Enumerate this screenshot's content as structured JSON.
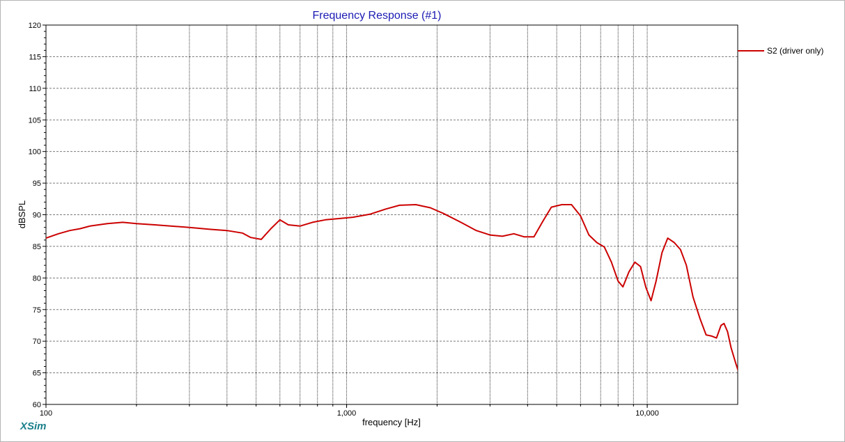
{
  "chart_data": {
    "type": "line",
    "title": "Frequency Response (#1)",
    "xlabel": "frequency [Hz]",
    "ylabel": "dBSPL",
    "xscale": "log",
    "xlim": [
      100,
      20000
    ],
    "ylim": [
      60,
      120
    ],
    "x_tick_labels": [
      {
        "value": 100,
        "label": "100"
      },
      {
        "value": 1000,
        "label": "1,000"
      },
      {
        "value": 10000,
        "label": "10,000"
      }
    ],
    "y_ticks": [
      60,
      65,
      70,
      75,
      80,
      85,
      90,
      95,
      100,
      105,
      110,
      115,
      120
    ],
    "grid": true,
    "legend_position": "right",
    "series": [
      {
        "name": "S2 (driver only)",
        "color": "#cc0000",
        "points": [
          [
            100,
            86.3
          ],
          [
            110,
            87.0
          ],
          [
            120,
            87.5
          ],
          [
            130,
            87.8
          ],
          [
            140,
            88.2
          ],
          [
            160,
            88.6
          ],
          [
            180,
            88.8
          ],
          [
            200,
            88.6
          ],
          [
            230,
            88.4
          ],
          [
            260,
            88.2
          ],
          [
            300,
            88.0
          ],
          [
            350,
            87.7
          ],
          [
            400,
            87.5
          ],
          [
            450,
            87.1
          ],
          [
            480,
            86.4
          ],
          [
            520,
            86.1
          ],
          [
            560,
            87.8
          ],
          [
            600,
            89.2
          ],
          [
            640,
            88.4
          ],
          [
            700,
            88.2
          ],
          [
            770,
            88.8
          ],
          [
            850,
            89.2
          ],
          [
            950,
            89.4
          ],
          [
            1050,
            89.6
          ],
          [
            1200,
            90.1
          ],
          [
            1350,
            90.9
          ],
          [
            1500,
            91.5
          ],
          [
            1700,
            91.6
          ],
          [
            1900,
            91.1
          ],
          [
            2100,
            90.2
          ],
          [
            2400,
            88.8
          ],
          [
            2700,
            87.5
          ],
          [
            3000,
            86.8
          ],
          [
            3300,
            86.6
          ],
          [
            3600,
            87.0
          ],
          [
            3900,
            86.5
          ],
          [
            4200,
            86.5
          ],
          [
            4500,
            89.0
          ],
          [
            4800,
            91.2
          ],
          [
            5200,
            91.6
          ],
          [
            5600,
            91.6
          ],
          [
            6000,
            89.8
          ],
          [
            6400,
            86.8
          ],
          [
            6800,
            85.6
          ],
          [
            7200,
            84.9
          ],
          [
            7600,
            82.5
          ],
          [
            8000,
            79.5
          ],
          [
            8300,
            78.6
          ],
          [
            8700,
            81.0
          ],
          [
            9100,
            82.5
          ],
          [
            9500,
            81.8
          ],
          [
            9900,
            78.5
          ],
          [
            10300,
            76.4
          ],
          [
            10700,
            79.5
          ],
          [
            11200,
            84.0
          ],
          [
            11700,
            86.3
          ],
          [
            12300,
            85.6
          ],
          [
            12900,
            84.5
          ],
          [
            13500,
            82.0
          ],
          [
            14200,
            77.0
          ],
          [
            15000,
            73.5
          ],
          [
            15700,
            71.0
          ],
          [
            16400,
            70.8
          ],
          [
            17000,
            70.5
          ],
          [
            17600,
            72.5
          ],
          [
            18000,
            72.8
          ],
          [
            18500,
            71.5
          ],
          [
            19000,
            69.0
          ],
          [
            19700,
            66.5
          ],
          [
            20500,
            64.0
          ],
          [
            21500,
            62.0
          ],
          [
            22400,
            60.3
          ]
        ]
      }
    ]
  },
  "brand": {
    "label": "XSim",
    "color": "#1a7f8a"
  },
  "colors": {
    "title": "#1a1ab4",
    "grid": "#7a7a7a",
    "plot_border": "#000000"
  }
}
